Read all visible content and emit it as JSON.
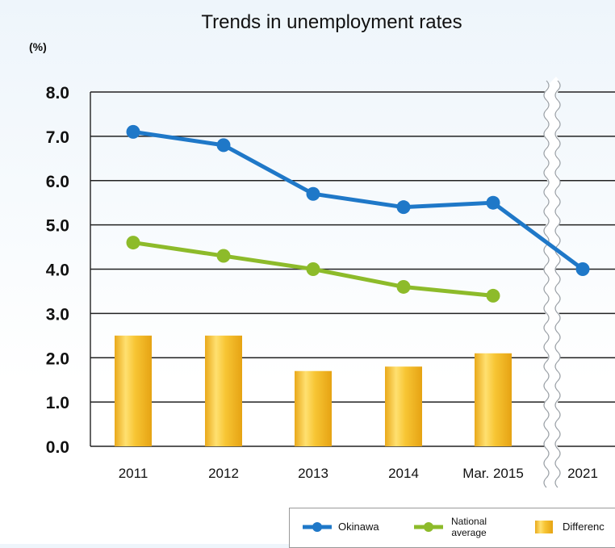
{
  "chart_data": {
    "type": "line",
    "title": "Trends in unemployment rates",
    "ylabel": "(%)",
    "ylim": [
      0,
      8
    ],
    "yticks": [
      "0.0",
      "1.0",
      "2.0",
      "3.0",
      "4.0",
      "5.0",
      "6.0",
      "7.0",
      "8.0"
    ],
    "categories": [
      "2011",
      "2012",
      "2013",
      "2014",
      "Mar. 2015",
      "2021"
    ],
    "axis_break_between": [
      "Mar. 2015",
      "2021"
    ],
    "grid": true,
    "legend_position": "bottom-right",
    "series": [
      {
        "name": "Okinawa",
        "type": "line",
        "color": "#1f78c8",
        "values": [
          7.1,
          6.8,
          5.7,
          5.4,
          5.5,
          4.0
        ]
      },
      {
        "name": "National average",
        "type": "line",
        "color": "#8dbb2a",
        "values": [
          4.6,
          4.3,
          4.0,
          3.6,
          3.4,
          null
        ]
      },
      {
        "name": "Difference",
        "type": "bar",
        "color": "#f4c430",
        "values": [
          2.5,
          2.5,
          1.7,
          1.8,
          2.1,
          null
        ]
      }
    ]
  },
  "legend": {
    "okinawa": "Okinawa",
    "national_line1": "National",
    "national_line2": "average",
    "difference": "Differenc"
  }
}
